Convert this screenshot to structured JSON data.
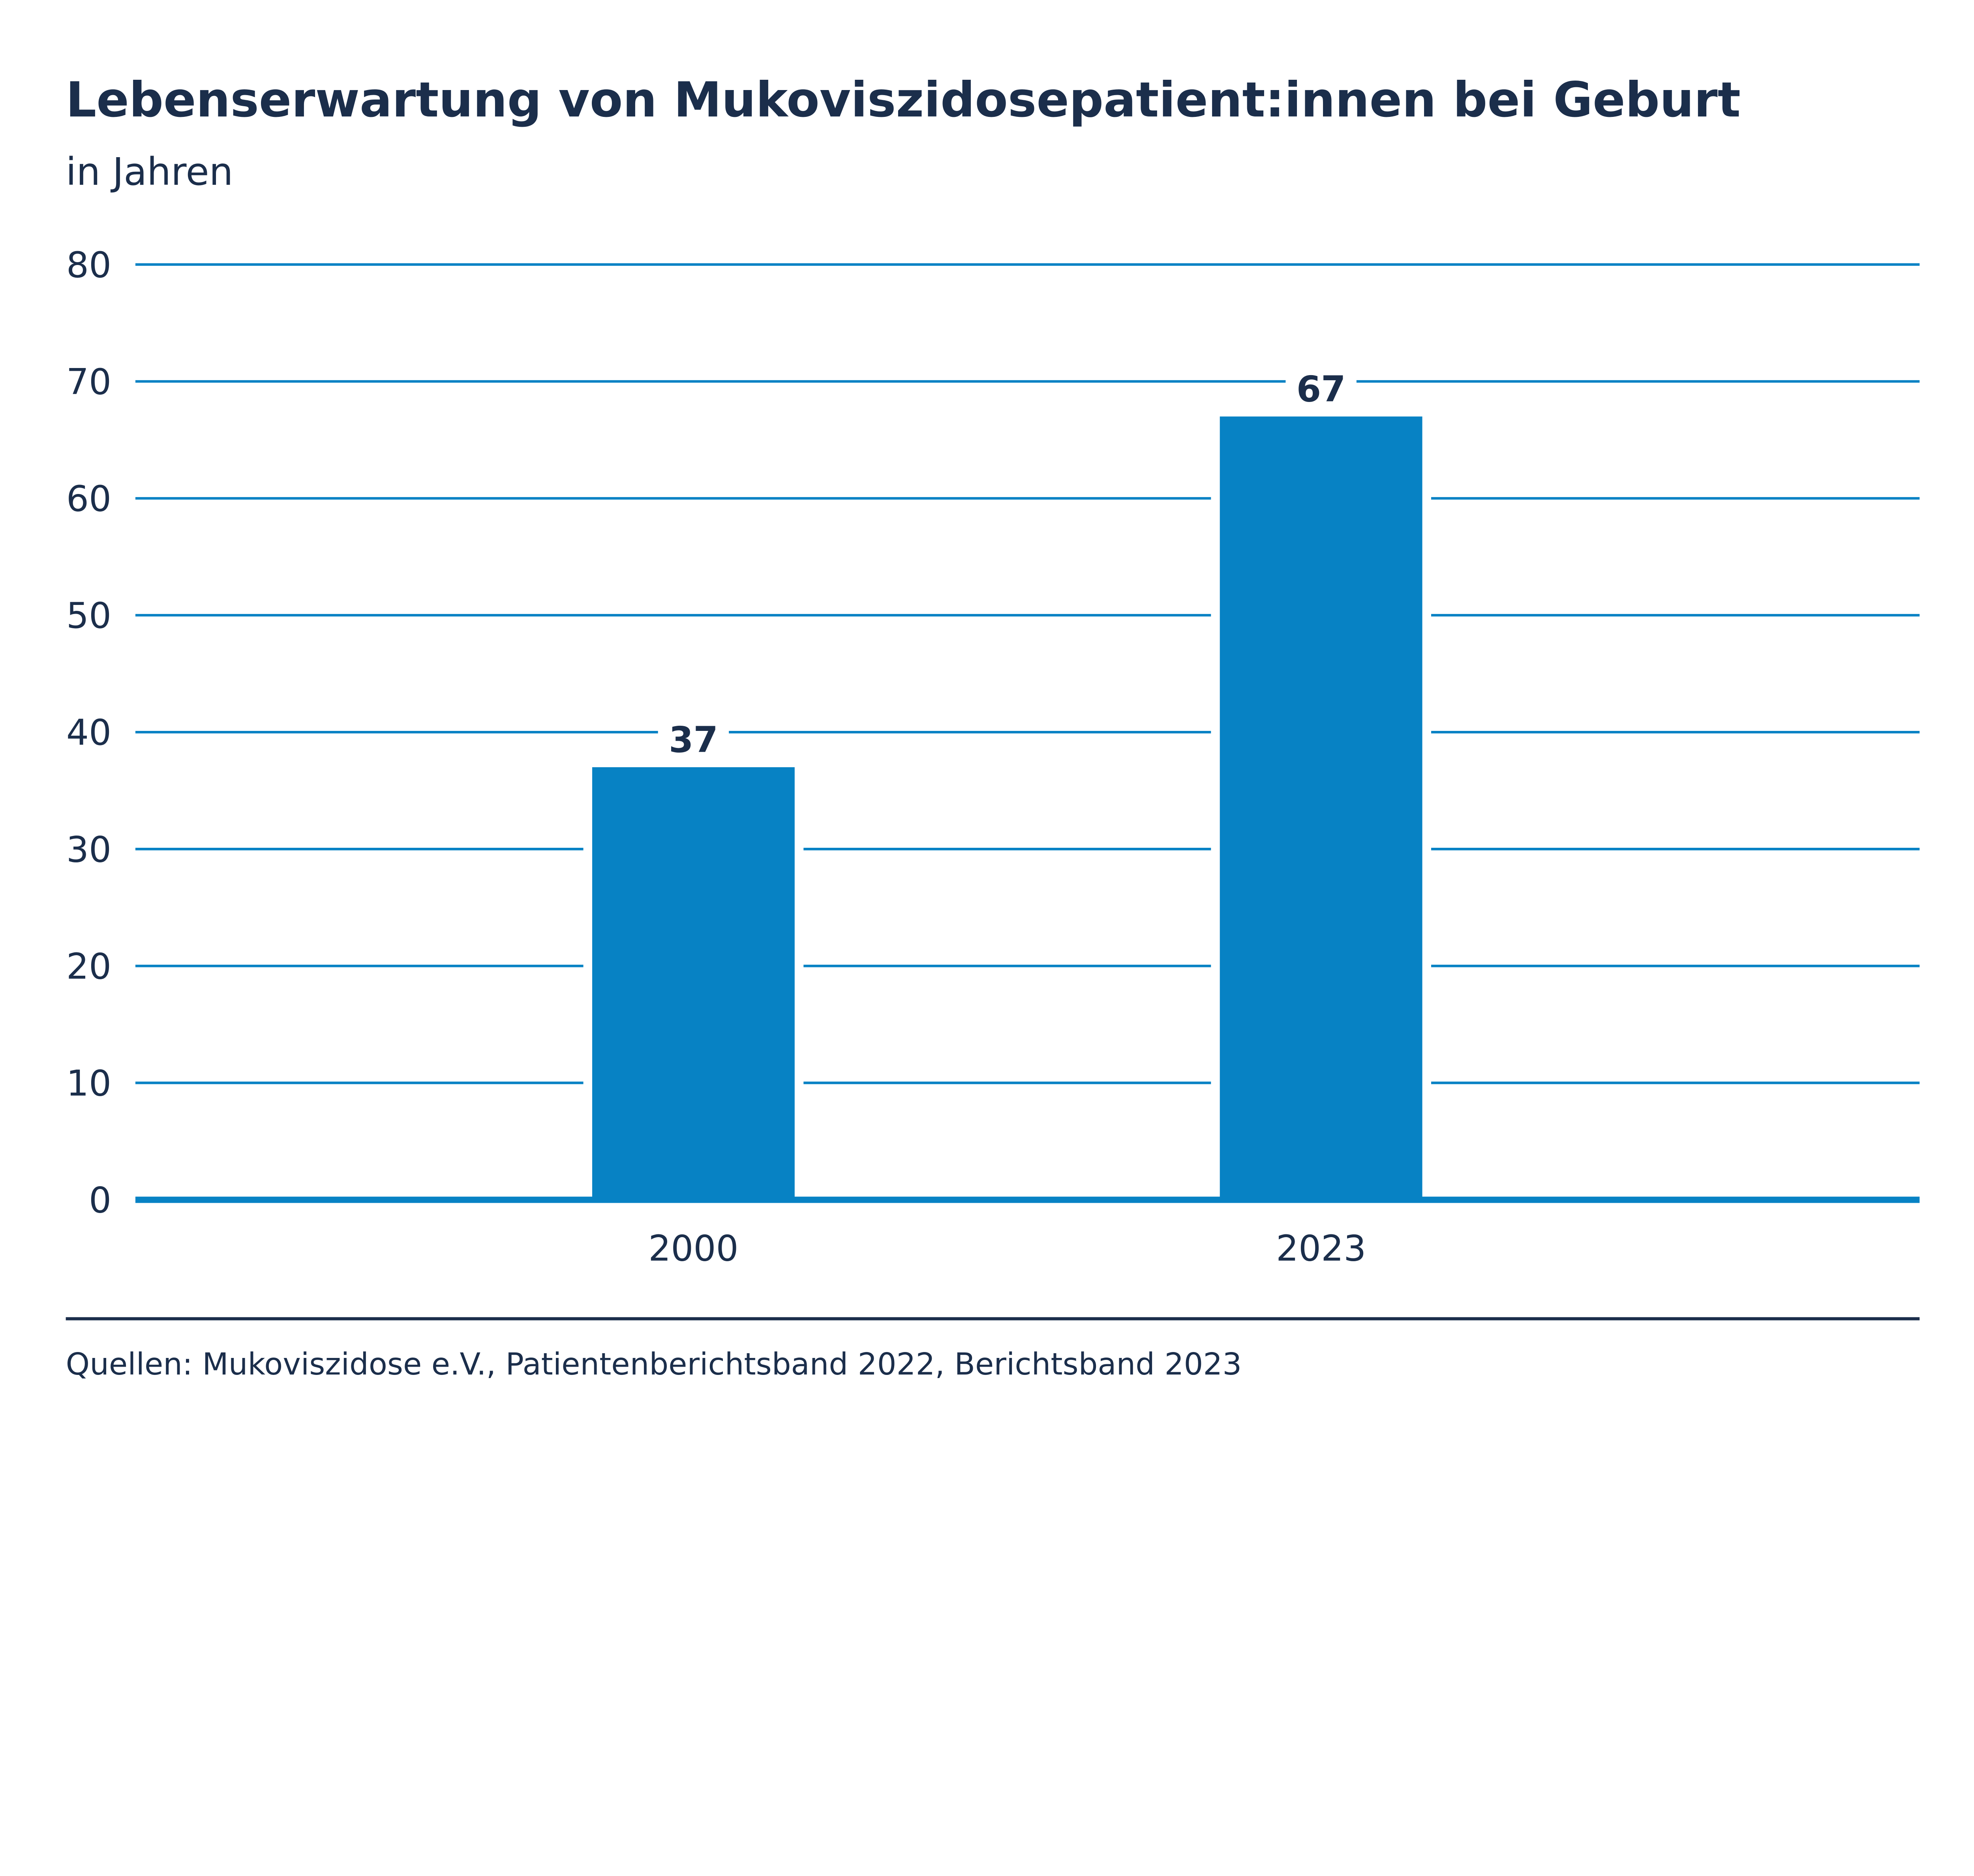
{
  "chart_data": {
    "type": "bar",
    "title": "Lebenserwartung von Mukoviszidosepatient:innen bei Geburt",
    "subtitle": "in Jahren",
    "categories": [
      "2000",
      "2023"
    ],
    "values": [
      37,
      67
    ],
    "data_labels": [
      "37",
      "67"
    ],
    "xlabel": "",
    "ylabel": "",
    "ylim": [
      0,
      80
    ],
    "yticks": [
      0,
      10,
      20,
      30,
      40,
      50,
      60,
      70,
      80
    ],
    "grid": true,
    "legend": "none",
    "colors": {
      "bar": "#0782c4",
      "grid": "#0782c4",
      "text": "#1b2e4b"
    },
    "source": "Quellen: Mukoviszidose e.V., Patientenberichtsband 2022, Berichtsband 2023"
  }
}
